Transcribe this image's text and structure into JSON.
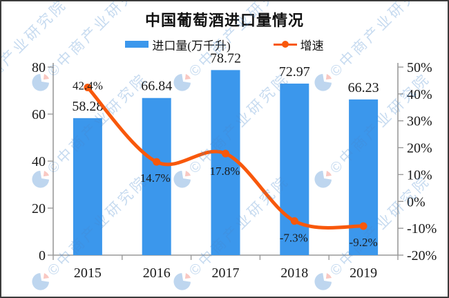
{
  "watermark": {
    "text": "©中商产业研究院",
    "text_color": "rgba(70,135,205,0.30)",
    "logo_blue": "rgba(110,165,220,0.45)",
    "logo_red": "rgba(240,125,110,0.42)"
  },
  "chart_data": {
    "type": "combo-bar-line",
    "title": "中国葡萄酒进口量情况",
    "categories": [
      "2015",
      "2016",
      "2017",
      "2018",
      "2019"
    ],
    "series": [
      {
        "name": "进口量(万千升)",
        "type": "bar",
        "color": "#3B97EC",
        "axis": "left",
        "values": [
          58.28,
          66.84,
          78.72,
          72.97,
          66.23
        ],
        "data_labels": [
          "58.28",
          "66.84",
          "78.72",
          "72.97",
          "66.23"
        ]
      },
      {
        "name": "增速",
        "type": "line",
        "color": "#F8580B",
        "axis": "right",
        "values": [
          42.4,
          14.7,
          17.8,
          -7.3,
          -9.2
        ],
        "data_labels": [
          "42.4%",
          "14.7%",
          "17.8%",
          "-7.3%",
          "-9.2%"
        ]
      }
    ],
    "left_axis": {
      "min": 0,
      "max": 80,
      "ticks": [
        "0",
        "20",
        "40",
        "60",
        "80"
      ]
    },
    "right_axis": {
      "min": -20,
      "max": 50,
      "ticks": [
        "-20%",
        "-10%",
        "0%",
        "10%",
        "20%",
        "30%",
        "40%",
        "50%"
      ]
    },
    "legend_position": "top",
    "grid": false,
    "axis_color": "#999999",
    "text_color": "#1a1a1a"
  }
}
